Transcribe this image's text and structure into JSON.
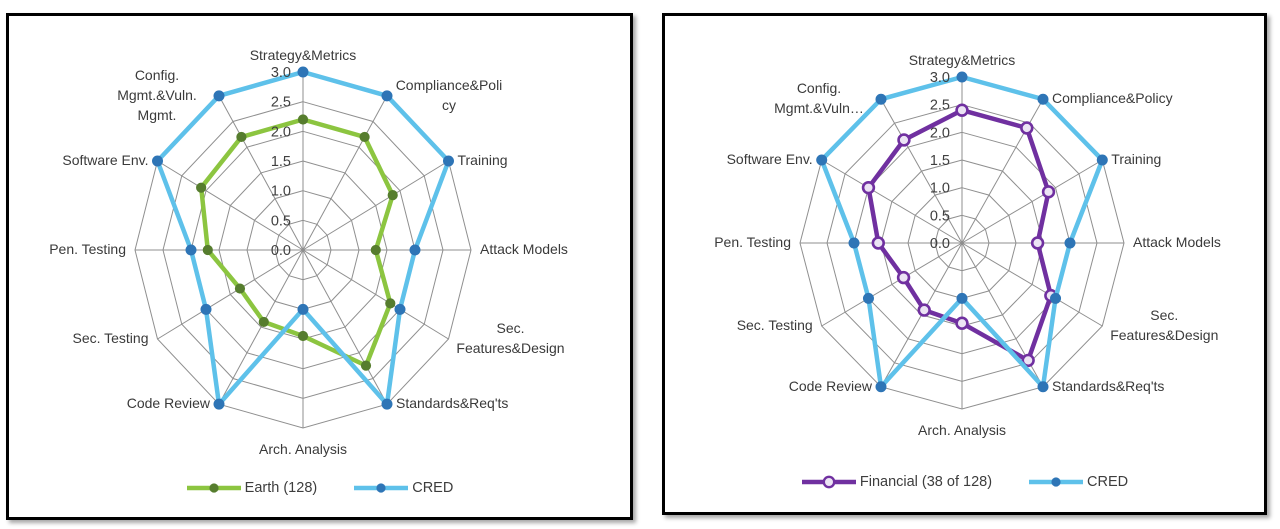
{
  "styles": {
    "grid_color": "#8f8f8f",
    "label_color": "#3a3a3a",
    "tick_color": "#404040",
    "panel_border": "#000000",
    "background": "#ffffff"
  },
  "chart_data": [
    {
      "type": "radar",
      "title": "",
      "categories": [
        "Strategy&Metrics",
        "Compliance&Policy",
        "Training",
        "Attack Models",
        "Sec. Features&Design",
        "Standards&Req'ts",
        "Arch. Analysis",
        "Code Review",
        "Sec. Testing",
        "Pen. Testing",
        "Software Env.",
        "Config. Mgmt.&Vuln. Mgmt."
      ],
      "categories_display": [
        [
          "Strategy&Metrics"
        ],
        [
          "Compliance&Poli",
          "cy"
        ],
        [
          "Training"
        ],
        [
          "Attack Models"
        ],
        [
          "Sec.",
          "Features&Design"
        ],
        [
          "Standards&Req'ts"
        ],
        [
          "Arch. Analysis"
        ],
        [
          "Code Review"
        ],
        [
          "Sec. Testing"
        ],
        [
          "Pen. Testing"
        ],
        [
          "Software Env."
        ],
        [
          "Config.",
          "Mgmt.&Vuln.",
          "Mgmt."
        ]
      ],
      "rlim": [
        0,
        3
      ],
      "rtick_step": 0.5,
      "tick_labels": [
        "3.0",
        "2.5",
        "2.0",
        "1.5",
        "1.0",
        "0.5",
        "0.0"
      ],
      "grid": true,
      "legend_position": "bottom",
      "series": [
        {
          "name": "Earth (128)",
          "values": [
            2.2,
            2.2,
            1.85,
            1.3,
            1.8,
            2.25,
            1.45,
            1.4,
            1.3,
            1.7,
            2.1,
            2.2
          ],
          "color": "#8cc540",
          "marker": "filled",
          "marker_fill": "#567d2e",
          "marker_stroke": "#567d2e"
        },
        {
          "name": "CRED",
          "values": [
            3.0,
            3.0,
            3.0,
            2.0,
            2.0,
            3.0,
            1.0,
            3.0,
            2.0,
            2.0,
            3.0,
            3.0
          ],
          "color": "#5ec1ea",
          "marker": "filled",
          "marker_fill": "#2e75b6",
          "marker_stroke": "#2e75b6"
        }
      ]
    },
    {
      "type": "radar",
      "title": "",
      "categories": [
        "Strategy&Metrics",
        "Compliance&Policy",
        "Training",
        "Attack Models",
        "Sec. Features&Design",
        "Standards&Req'ts",
        "Arch. Analysis",
        "Code Review",
        "Sec. Testing",
        "Pen. Testing",
        "Software Env.",
        "Config. Mgmt.&Vuln. Mgmt."
      ],
      "categories_display": [
        [
          "Strategy&Metrics"
        ],
        [
          "Compliance&Policy"
        ],
        [
          "Training"
        ],
        [
          "Attack Models"
        ],
        [
          "Sec.",
          "Features&Design"
        ],
        [
          "Standards&Req'ts"
        ],
        [
          "Arch. Analysis"
        ],
        [
          "Code Review"
        ],
        [
          "Sec. Testing"
        ],
        [
          "Pen. Testing"
        ],
        [
          "Software Env."
        ],
        [
          "Config.",
          "Mgmt.&Vuln…"
        ]
      ],
      "rlim": [
        0,
        3
      ],
      "rtick_step": 0.5,
      "tick_labels": [
        "3.0",
        "2.5",
        "2.0",
        "1.5",
        "1.0",
        "0.5",
        "0.0"
      ],
      "grid": true,
      "legend_position": "bottom",
      "series": [
        {
          "name": "Financial (38 of 128)",
          "values": [
            2.4,
            2.4,
            1.85,
            1.4,
            1.9,
            2.45,
            1.45,
            1.4,
            1.25,
            1.55,
            2.0,
            2.15
          ],
          "color": "#7030a0",
          "marker": "open",
          "marker_fill": "#ece4f4",
          "marker_stroke": "#7030a0"
        },
        {
          "name": "CRED",
          "values": [
            3.0,
            3.0,
            3.0,
            2.0,
            2.0,
            3.0,
            1.0,
            3.0,
            2.0,
            2.0,
            3.0,
            3.0
          ],
          "color": "#5ec1ea",
          "marker": "filled",
          "marker_fill": "#2e75b6",
          "marker_stroke": "#2e75b6"
        }
      ]
    }
  ]
}
